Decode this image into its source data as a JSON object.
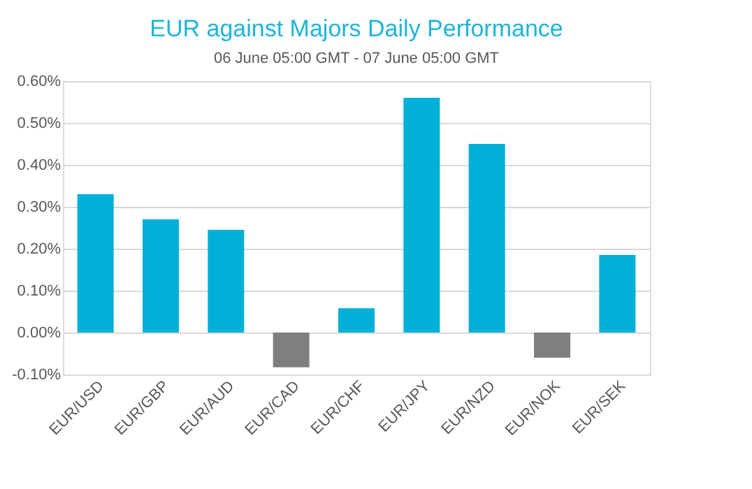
{
  "chart_data": {
    "type": "bar",
    "title": "EUR against Majors Daily Performance",
    "subtitle": "06 June 05:00 GMT - 07 June 05:00 GMT",
    "categories": [
      "EUR/USD",
      "EUR/GBP",
      "EUR/AUD",
      "EUR/CAD",
      "EUR/CHF",
      "EUR/JPY",
      "EUR/NZD",
      "EUR/NOK",
      "EUR/SEK"
    ],
    "values": [
      0.33,
      0.27,
      0.245,
      -0.083,
      0.058,
      0.56,
      0.45,
      -0.06,
      0.185
    ],
    "colors": [
      "#00b0d8",
      "#00b0d8",
      "#00b0d8",
      "#7f7f7f",
      "#00b0d8",
      "#00b0d8",
      "#00b0d8",
      "#7f7f7f",
      "#00b0d8"
    ],
    "ylim": [
      -0.1,
      0.6
    ],
    "yticks": [
      {
        "value": -0.1,
        "label": "-0.10%"
      },
      {
        "value": 0,
        "label": "0.00%"
      },
      {
        "value": 0.1,
        "label": "0.10%"
      },
      {
        "value": 0.2,
        "label": "0.20%"
      },
      {
        "value": 0.3,
        "label": "0.30%"
      },
      {
        "value": 0.4,
        "label": "0.40%"
      },
      {
        "value": 0.5,
        "label": "0.50%"
      },
      {
        "value": 0.6,
        "label": "0.60%"
      }
    ],
    "grid": "y"
  }
}
